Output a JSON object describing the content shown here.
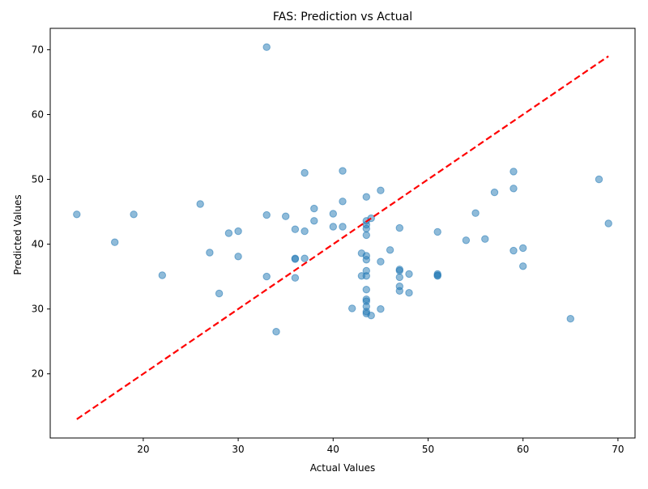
{
  "chart_data": {
    "type": "scatter",
    "title": "FAS: Prediction vs Actual",
    "xlabel": "Actual Values",
    "ylabel": "Predicted Values",
    "xlim": [
      10.2,
      71.8
    ],
    "ylim": [
      10.1,
      73.3
    ],
    "xticks": [
      20,
      30,
      40,
      50,
      60,
      70
    ],
    "yticks": [
      20,
      30,
      40,
      50,
      60,
      70
    ],
    "grid": false,
    "colors": {
      "points": "#1f77b4",
      "reference_line": "#ff0000"
    },
    "reference_line": {
      "x": [
        13,
        69
      ],
      "y": [
        13,
        69
      ],
      "style": "dashed"
    },
    "points": [
      [
        13.0,
        44.6
      ],
      [
        17.0,
        40.3
      ],
      [
        19.0,
        44.6
      ],
      [
        22.0,
        35.2
      ],
      [
        26.0,
        46.2
      ],
      [
        27.0,
        38.7
      ],
      [
        28.0,
        32.4
      ],
      [
        29.0,
        41.7
      ],
      [
        30.0,
        42.0
      ],
      [
        30.0,
        38.1
      ],
      [
        33.0,
        70.4
      ],
      [
        33.0,
        44.5
      ],
      [
        33.0,
        35.0
      ],
      [
        34.0,
        26.5
      ],
      [
        35.0,
        44.3
      ],
      [
        36.0,
        42.3
      ],
      [
        36.0,
        37.8
      ],
      [
        36.0,
        37.7
      ],
      [
        36.0,
        34.8
      ],
      [
        37.0,
        51.0
      ],
      [
        37.0,
        42.0
      ],
      [
        37.0,
        37.8
      ],
      [
        38.0,
        45.5
      ],
      [
        38.0,
        43.6
      ],
      [
        40.0,
        44.7
      ],
      [
        40.0,
        42.7
      ],
      [
        41.0,
        51.3
      ],
      [
        41.0,
        46.6
      ],
      [
        41.0,
        42.7
      ],
      [
        42.0,
        30.1
      ],
      [
        43.0,
        38.6
      ],
      [
        43.0,
        35.1
      ],
      [
        43.5,
        47.3
      ],
      [
        43.5,
        43.6
      ],
      [
        43.5,
        43.0
      ],
      [
        43.5,
        42.4
      ],
      [
        43.5,
        41.4
      ],
      [
        43.5,
        38.2
      ],
      [
        43.5,
        37.6
      ],
      [
        43.5,
        35.9
      ],
      [
        43.5,
        35.1
      ],
      [
        43.5,
        33.0
      ],
      [
        43.5,
        31.5
      ],
      [
        43.5,
        31.2
      ],
      [
        43.5,
        30.4
      ],
      [
        43.5,
        29.6
      ],
      [
        43.5,
        29.3
      ],
      [
        44.0,
        44.0
      ],
      [
        44.0,
        29.0
      ],
      [
        45.0,
        48.3
      ],
      [
        45.0,
        37.3
      ],
      [
        45.0,
        30.0
      ],
      [
        46.0,
        39.1
      ],
      [
        47.0,
        42.5
      ],
      [
        47.0,
        36.1
      ],
      [
        47.0,
        35.9
      ],
      [
        47.0,
        34.9
      ],
      [
        47.0,
        33.5
      ],
      [
        47.0,
        32.8
      ],
      [
        48.0,
        35.4
      ],
      [
        48.0,
        32.5
      ],
      [
        51.0,
        41.9
      ],
      [
        51.0,
        35.4
      ],
      [
        51.0,
        35.2
      ],
      [
        51.0,
        35.1
      ],
      [
        54.0,
        40.6
      ],
      [
        55.0,
        44.8
      ],
      [
        56.0,
        40.8
      ],
      [
        57.0,
        48.0
      ],
      [
        59.0,
        51.2
      ],
      [
        59.0,
        48.6
      ],
      [
        59.0,
        39.0
      ],
      [
        60.0,
        39.4
      ],
      [
        60.0,
        36.6
      ],
      [
        65.0,
        28.5
      ],
      [
        68.0,
        50.0
      ],
      [
        69.0,
        43.2
      ]
    ]
  }
}
